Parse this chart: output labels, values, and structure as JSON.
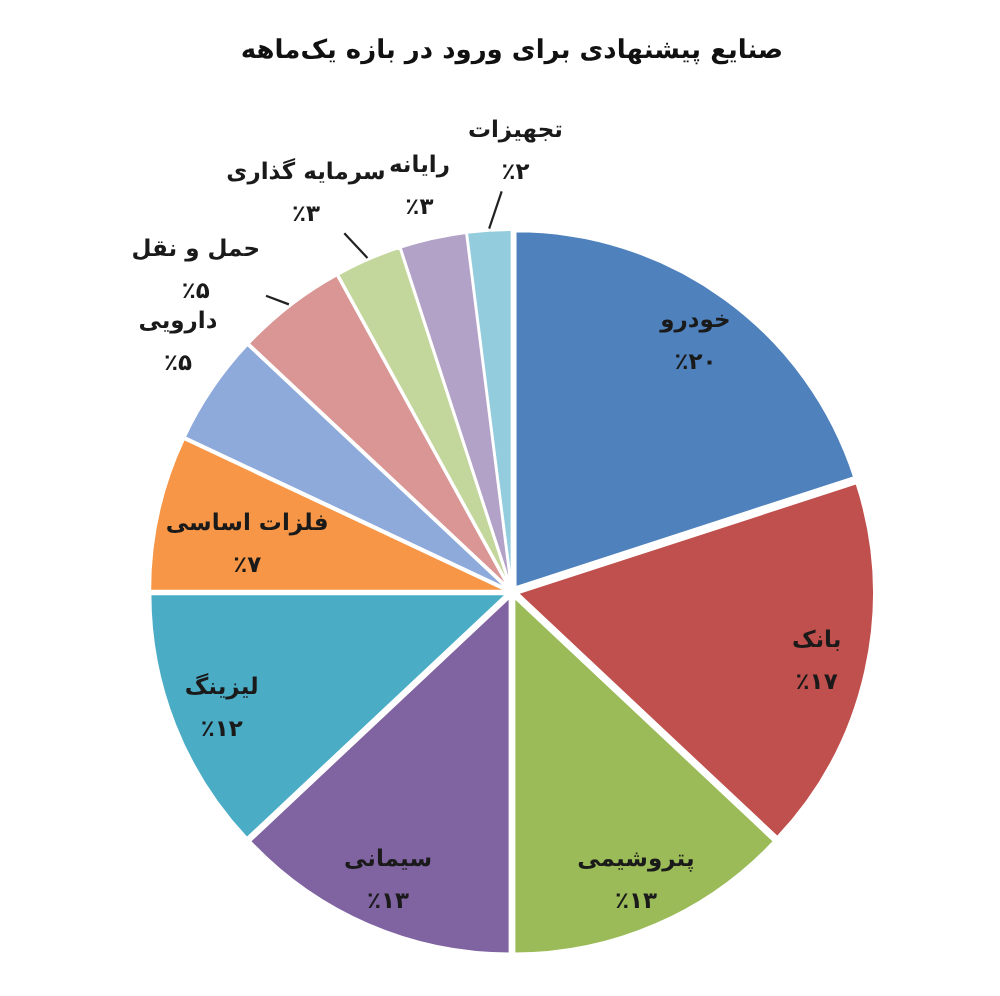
{
  "chart_data": {
    "type": "pie",
    "title": "صنایع پیشنهادی برای ورود در بازه یک‌ماهه",
    "categories": [
      "خودرو",
      "بانک",
      "پتروشیمی",
      "سیمانی",
      "لیزینگ",
      "فلزات اساسی",
      "دارویی",
      "حمل و نقل",
      "سرمایه گذاری",
      "رایانه",
      "تجهیزات"
    ],
    "values": [
      20,
      17,
      13,
      13,
      12,
      7,
      5,
      5,
      3,
      3,
      2
    ],
    "colors": [
      "#4f81bd",
      "#c0504d",
      "#9bbb59",
      "#8064a2",
      "#4bacc6",
      "#f79646",
      "#8eaadb",
      "#d99694",
      "#c3d69b",
      "#b3a2c7",
      "#93cddd"
    ],
    "value_labels": [
      "٪۲۰",
      "٪۱۷",
      "٪۱۳",
      "٪۱۳",
      "٪۱۲",
      "٪۷",
      "٪۵",
      "٪۵",
      "٪۳",
      "٪۳",
      "٪۲"
    ]
  }
}
